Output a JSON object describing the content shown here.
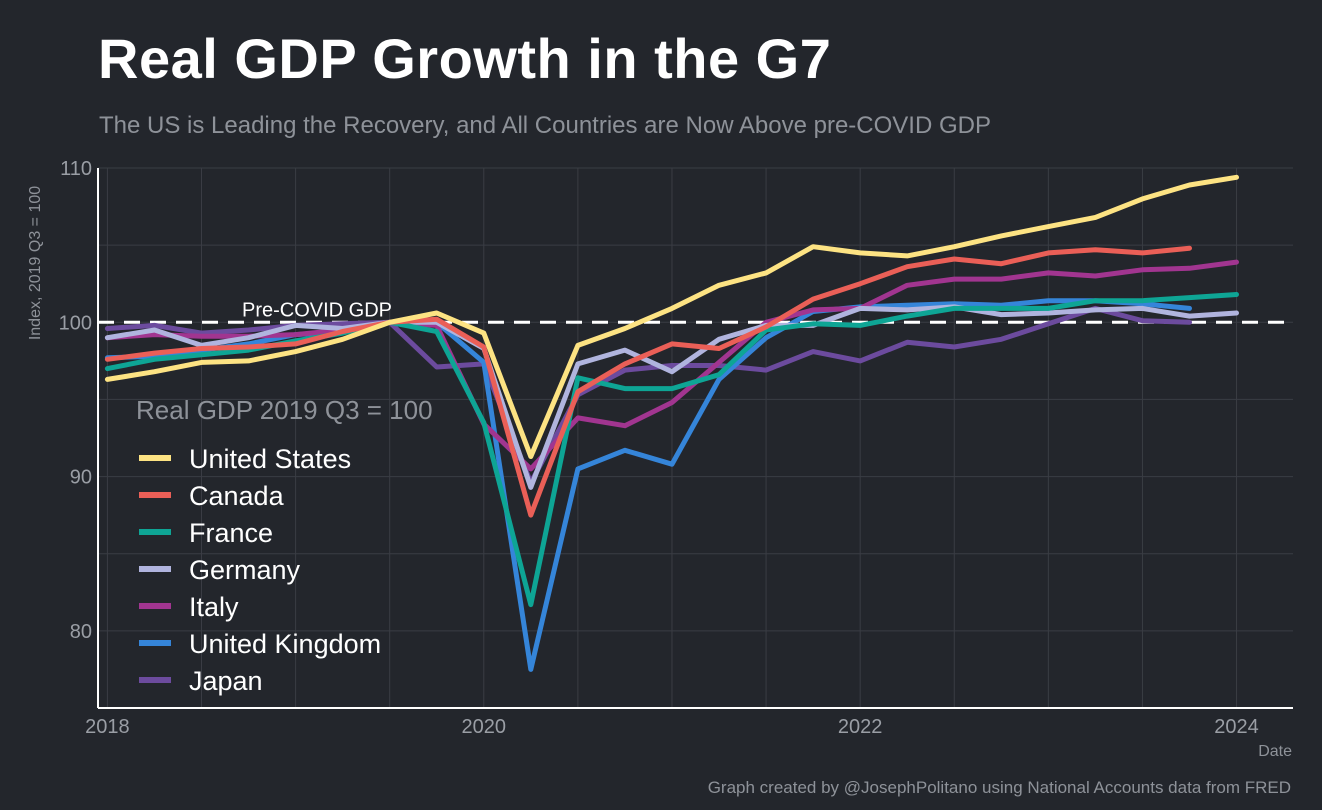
{
  "chart_data": {
    "type": "line",
    "title": "Real GDP Growth in the G7",
    "subtitle": "The US is Leading the Recovery, and All Countries are Now Above pre-COVID GDP",
    "xlabel": "Date",
    "ylabel": "Index, 2019 Q3 = 100",
    "caption": "Graph created by @JosephPolitano using National Accounts data from FRED",
    "xlim": [
      2017.95,
      2024.3
    ],
    "ylim": [
      75,
      110
    ],
    "x_ticks": [
      2018,
      2020,
      2022,
      2024
    ],
    "y_ticks": [
      80,
      90,
      100,
      110
    ],
    "grid": true,
    "legend": {
      "title": "Real GDP 2019 Q3 = 100",
      "position": "left-middle"
    },
    "reference_line": {
      "y": 100,
      "label": "Pre-COVID GDP"
    },
    "x": [
      2018.0,
      2018.25,
      2018.5,
      2018.75,
      2019.0,
      2019.25,
      2019.5,
      2019.75,
      2020.0,
      2020.25,
      2020.5,
      2020.75,
      2021.0,
      2021.25,
      2021.5,
      2021.75,
      2022.0,
      2022.25,
      2022.5,
      2022.75,
      2023.0,
      2023.25,
      2023.5,
      2023.75,
      2024.0
    ],
    "series": [
      {
        "name": "United States",
        "color": "#fde383",
        "values": [
          96.3,
          96.8,
          97.4,
          97.5,
          98.1,
          98.9,
          100.0,
          100.6,
          99.3,
          91.3,
          98.5,
          99.6,
          100.9,
          102.4,
          103.2,
          104.9,
          104.5,
          104.3,
          104.9,
          105.6,
          106.2,
          106.8,
          108.0,
          108.9,
          109.4
        ]
      },
      {
        "name": "Canada",
        "color": "#ea5f57",
        "values": [
          97.6,
          98.0,
          98.3,
          98.4,
          98.6,
          99.4,
          100.0,
          100.2,
          98.4,
          87.5,
          95.5,
          97.3,
          98.6,
          98.3,
          99.7,
          101.5,
          102.5,
          103.6,
          104.1,
          103.8,
          104.5,
          104.7,
          104.5,
          104.8,
          null
        ]
      },
      {
        "name": "France",
        "color": "#0ea595",
        "values": [
          97.0,
          97.6,
          97.9,
          98.2,
          98.8,
          99.3,
          100.0,
          99.4,
          93.5,
          81.7,
          96.4,
          95.7,
          95.7,
          96.6,
          99.5,
          99.9,
          99.8,
          100.4,
          100.9,
          100.9,
          100.9,
          101.4,
          101.4,
          101.6,
          101.8
        ]
      },
      {
        "name": "Germany",
        "color": "#b0b4de",
        "values": [
          99.0,
          99.5,
          98.5,
          99.0,
          99.8,
          99.6,
          100.0,
          100.0,
          98.3,
          89.3,
          97.3,
          98.2,
          96.8,
          98.9,
          99.8,
          99.8,
          100.9,
          100.8,
          101.0,
          100.5,
          100.6,
          100.8,
          100.9,
          100.4,
          100.6
        ]
      },
      {
        "name": "Italy",
        "color": "#a13590",
        "values": [
          99.0,
          99.2,
          99.1,
          99.1,
          99.2,
          99.5,
          100.0,
          99.8,
          93.4,
          90.5,
          93.8,
          93.3,
          94.8,
          97.4,
          100.0,
          100.8,
          100.9,
          102.4,
          102.8,
          102.8,
          103.2,
          103.0,
          103.4,
          103.5,
          103.9
        ]
      },
      {
        "name": "United Kingdom",
        "color": "#3585d9",
        "values": [
          97.7,
          97.8,
          98.2,
          98.6,
          99.2,
          99.4,
          100.0,
          100.0,
          97.4,
          77.5,
          90.5,
          91.7,
          90.8,
          96.3,
          99.0,
          100.7,
          101.0,
          101.1,
          101.2,
          101.1,
          101.4,
          101.4,
          101.2,
          100.9,
          null
        ]
      },
      {
        "name": "Japan",
        "color": "#6c4b9e",
        "values": [
          99.6,
          99.8,
          99.3,
          99.5,
          99.8,
          99.9,
          100.0,
          97.1,
          97.3,
          89.6,
          95.3,
          96.9,
          97.2,
          97.2,
          96.9,
          98.1,
          97.5,
          98.7,
          98.4,
          98.9,
          99.9,
          100.9,
          100.1,
          100.0,
          null
        ]
      }
    ]
  }
}
